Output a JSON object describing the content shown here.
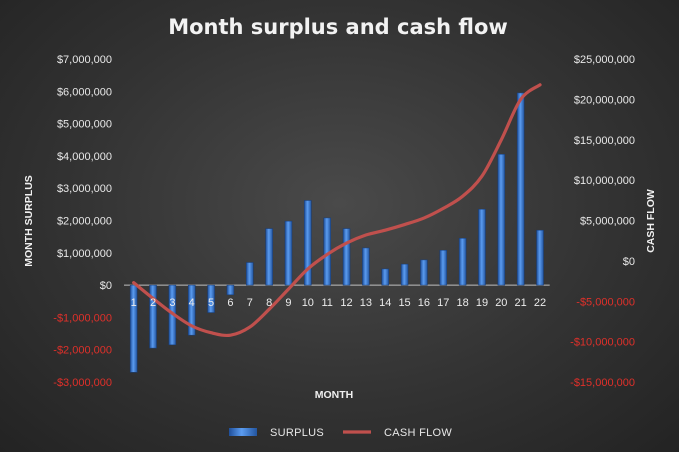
{
  "chart_data": {
    "type": "bar",
    "title": "Month surplus and cash flow",
    "xlabel": "MONTH",
    "ylabel": "MONTH SURPLUS",
    "y2label": "CASH FLOW",
    "categories": [
      "1",
      "2",
      "3",
      "4",
      "5",
      "6",
      "7",
      "8",
      "9",
      "10",
      "11",
      "12",
      "13",
      "14",
      "15",
      "16",
      "17",
      "18",
      "19",
      "20",
      "21",
      "22"
    ],
    "ylim": [
      -3000000,
      7000000
    ],
    "y2lim": [
      -15000000,
      25000000
    ],
    "yticks": [
      {
        "value": 7000000,
        "label": "$7,000,000",
        "color": "#e8e8e8"
      },
      {
        "value": 6000000,
        "label": "$6,000,000",
        "color": "#e8e8e8"
      },
      {
        "value": 5000000,
        "label": "$5,000,000",
        "color": "#e8e8e8"
      },
      {
        "value": 4000000,
        "label": "$4,000,000",
        "color": "#e8e8e8"
      },
      {
        "value": 3000000,
        "label": "$3,000,000",
        "color": "#e8e8e8"
      },
      {
        "value": 2000000,
        "label": "$2,000,000",
        "color": "#e8e8e8"
      },
      {
        "value": 1000000,
        "label": "$1,000,000",
        "color": "#e8e8e8"
      },
      {
        "value": 0,
        "label": "$0",
        "color": "#e8e8e8"
      },
      {
        "value": -1000000,
        "label": "-$1,000,000",
        "color": "#e0302a"
      },
      {
        "value": -2000000,
        "label": "-$2,000,000",
        "color": "#e0302a"
      },
      {
        "value": -3000000,
        "label": "-$3,000,000",
        "color": "#e0302a"
      }
    ],
    "y2ticks": [
      {
        "value": 25000000,
        "label": "$25,000,000",
        "color": "#e8e8e8"
      },
      {
        "value": 20000000,
        "label": "$20,000,000",
        "color": "#e8e8e8"
      },
      {
        "value": 15000000,
        "label": "$15,000,000",
        "color": "#e8e8e8"
      },
      {
        "value": 10000000,
        "label": "$10,000,000",
        "color": "#e8e8e8"
      },
      {
        "value": 5000000,
        "label": "$5,000,000",
        "color": "#e8e8e8"
      },
      {
        "value": 0,
        "label": "$0",
        "color": "#e8e8e8"
      },
      {
        "value": -5000000,
        "label": "-$5,000,000",
        "color": "#e0302a"
      },
      {
        "value": -10000000,
        "label": "-$10,000,000",
        "color": "#e0302a"
      },
      {
        "value": -15000000,
        "label": "-$15,000,000",
        "color": "#e0302a"
      }
    ],
    "series": [
      {
        "name": "SURPLUS",
        "type": "bar",
        "axis": "left",
        "color": "#3f7fd8",
        "values": [
          -2700000,
          -1950000,
          -1850000,
          -1550000,
          -850000,
          -300000,
          700000,
          1750000,
          1980000,
          2620000,
          2080000,
          1750000,
          1150000,
          500000,
          650000,
          780000,
          1080000,
          1450000,
          2350000,
          4050000,
          5950000,
          1700000
        ]
      },
      {
        "name": "CASH FLOW",
        "type": "line",
        "axis": "right",
        "color": "#c0504d",
        "values": [
          -2700000,
          -4650000,
          -6500000,
          -8050000,
          -8900000,
          -9200000,
          -8200000,
          -6000000,
          -3500000,
          -1000000,
          800000,
          2200000,
          3200000,
          3800000,
          4500000,
          5300000,
          6500000,
          8000000,
          10500000,
          15000000,
          20000000,
          21800000
        ]
      }
    ],
    "legend_position": "bottom",
    "grid": false
  }
}
